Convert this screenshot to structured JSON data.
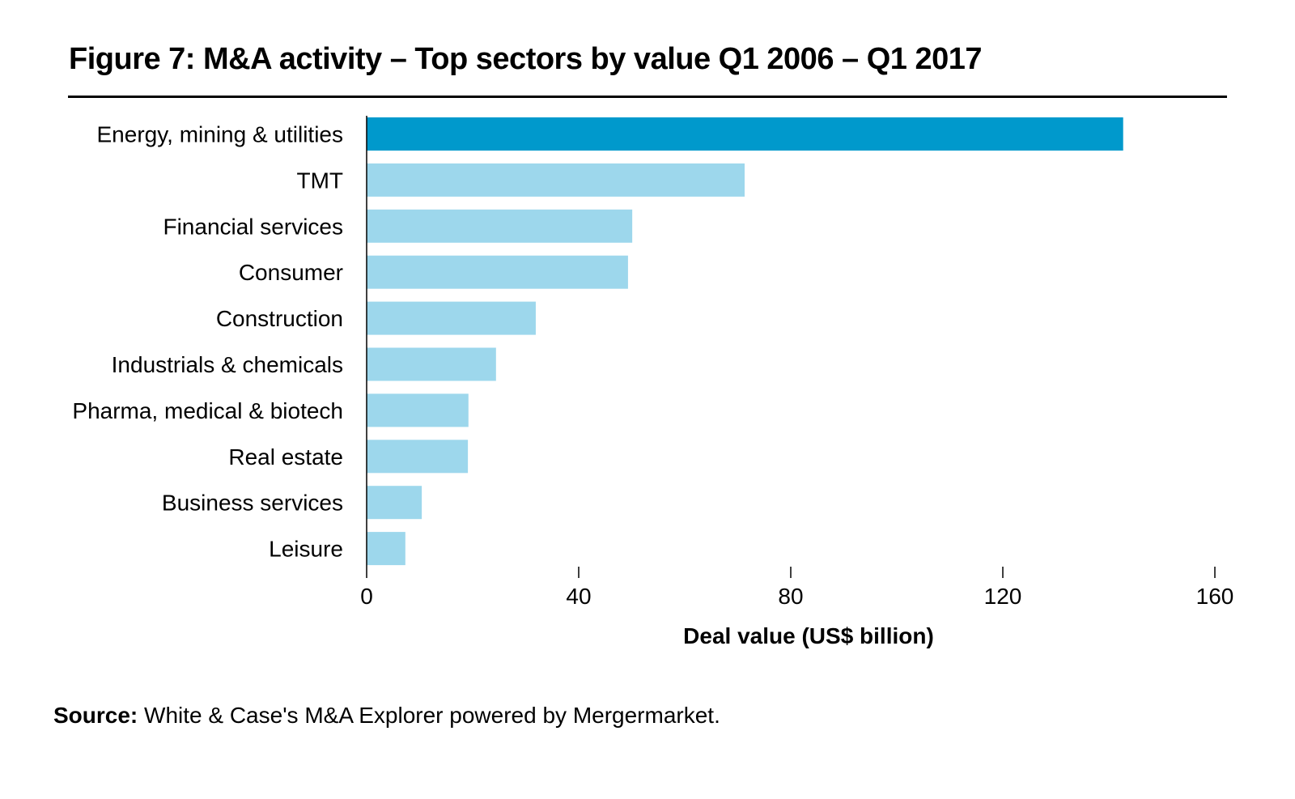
{
  "chart_data": {
    "type": "bar",
    "orientation": "horizontal",
    "title": "Figure 7: M&A activity – Top sectors by value Q1 2006 – Q1 2017",
    "categories": [
      "Energy, mining & utilities",
      "TMT",
      "Financial services",
      "Consumer",
      "Construction",
      "Industrials & chemicals",
      "Pharma, medical & biotech",
      "Real estate",
      "Business services",
      "Leisure"
    ],
    "values": [
      142.7,
      71.3,
      50.1,
      49.3,
      31.9,
      24.4,
      19.2,
      19.1,
      10.4,
      7.3
    ],
    "highlight_index": 0,
    "colors": {
      "highlight": "#0099cc",
      "default": "#9dd7ec",
      "axis": "#000000"
    },
    "xlabel": "Deal value (US$ billion)",
    "ylabel": "",
    "xlim": [
      0,
      160
    ],
    "xticks": [
      0,
      40,
      80,
      120,
      160
    ],
    "grid": false,
    "legend": "none"
  },
  "source": {
    "label": "Source:",
    "text": " White & Case's M&A Explorer powered by Mergermarket."
  }
}
